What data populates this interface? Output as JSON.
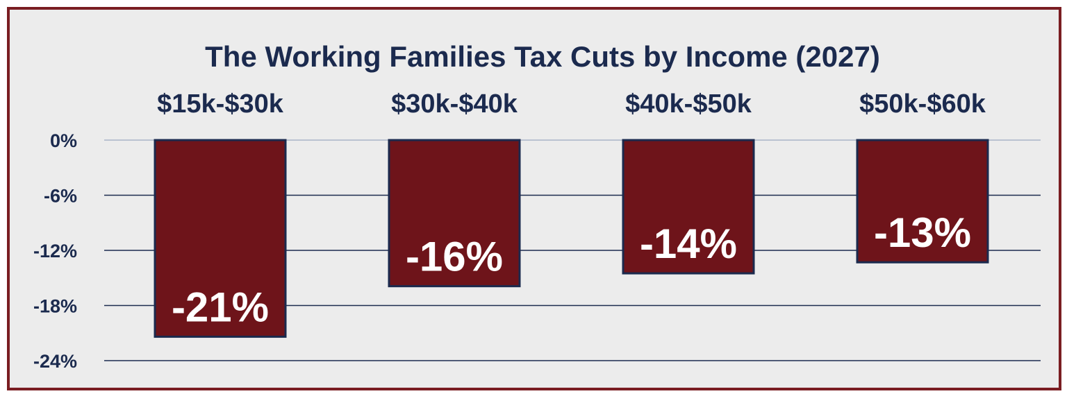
{
  "chart_data": {
    "type": "bar",
    "title": "The Working Families Tax Cuts by Income (2027)",
    "categories": [
      "$15k-$30k",
      "$30k-$40k",
      "$40k-$50k",
      "$50k-$60k"
    ],
    "values": [
      -21.4,
      -15.9,
      -14.5,
      -13.3
    ],
    "value_labels": [
      "-21%",
      "-16%",
      "-14%",
      "-13%"
    ],
    "ylim": [
      -24,
      0
    ],
    "yticks": [
      0,
      -6,
      -12,
      -18,
      -24
    ],
    "ytick_labels": [
      "0%",
      "-6%",
      "-12%",
      "-18%",
      "-24%"
    ],
    "category_labels_position": "top",
    "grid": true,
    "colors": {
      "bar": "#6e141a",
      "bar_border": "#1b2a4e",
      "grid": "#1b2a4e",
      "zero_line": "#aab4c8",
      "frame": "#7a1d22",
      "background": "#ececec",
      "text": "#1b2a4e",
      "value_label": "#ffffff"
    }
  }
}
